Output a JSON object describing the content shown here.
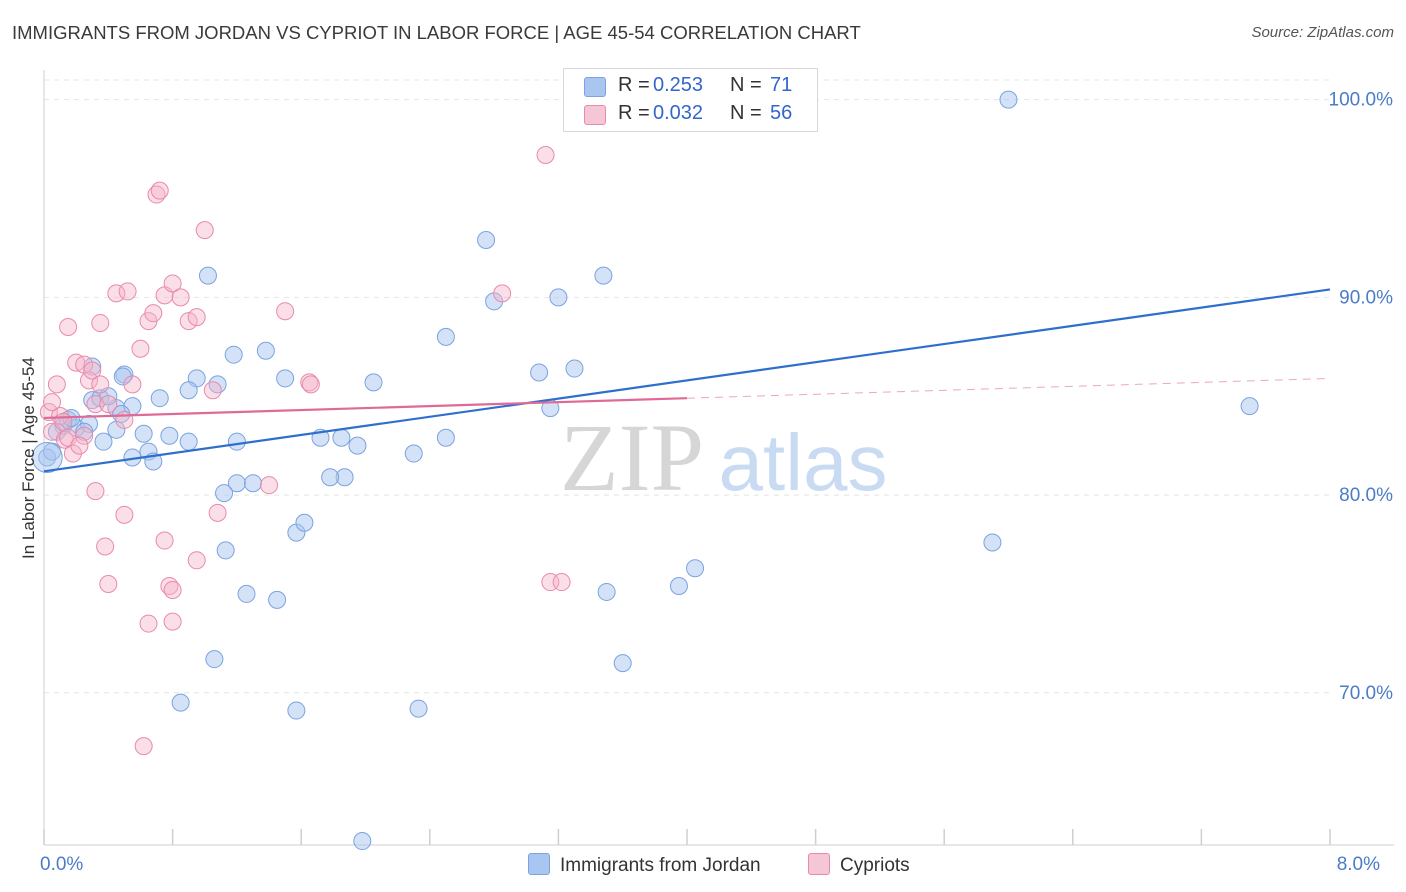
{
  "header": {
    "title": "IMMIGRANTS FROM JORDAN VS CYPRIOT IN LABOR FORCE | AGE 45-54 CORRELATION CHART",
    "source": "Source: ZipAtlas.com"
  },
  "watermark": {
    "zip": "ZIP",
    "atlas": "atlas"
  },
  "legend": {
    "series1": {
      "r_label": "R =",
      "r_value": "0.253",
      "n_label": "N =",
      "n_value": "71"
    },
    "series2": {
      "r_label": "R =",
      "r_value": "0.032",
      "n_label": "N =",
      "n_value": "56"
    }
  },
  "bottom_legend": {
    "series1": "Immigrants from Jordan",
    "series2": "Cypriots"
  },
  "colors": {
    "blue_fill": "#a9c6f0",
    "blue_stroke": "#7aa3e0",
    "blue_line": "#2f6fcc",
    "pink_fill": "#f5b3c8",
    "pink_stroke": "#e98aaa",
    "pink_line": "#e06a97",
    "axis_label": "#4a7cc7",
    "grid": "#e4e4e4"
  },
  "chart_data": {
    "type": "scatter",
    "title": "IMMIGRANTS FROM JORDAN VS CYPRIOT IN LABOR FORCE | AGE 45-54 CORRELATION CHART",
    "xlabel": "",
    "ylabel": "In Labor Force | Age 45-54",
    "xlim": [
      0,
      8
    ],
    "ylim": [
      62.3,
      101.5
    ],
    "x_tick_labels": [
      {
        "value": 0,
        "label": "0.0%"
      },
      {
        "value": 8,
        "label": "8.0%"
      }
    ],
    "y_tick_labels": [
      {
        "value": 100,
        "label": "100.0%"
      },
      {
        "value": 90,
        "label": "90.0%"
      },
      {
        "value": 80,
        "label": "80.0%"
      },
      {
        "value": 70,
        "label": "70.0%"
      }
    ],
    "series": [
      {
        "name": "Immigrants from Jordan",
        "color": "blue",
        "points": [
          [
            0.02,
            81.9
          ],
          [
            0.05,
            82.2
          ],
          [
            0.12,
            83.5
          ],
          [
            0.15,
            83.8
          ],
          [
            0.2,
            83.4
          ],
          [
            0.28,
            83.6
          ],
          [
            0.3,
            84.8
          ],
          [
            0.35,
            84.9
          ],
          [
            0.45,
            84.4
          ],
          [
            0.5,
            86.1
          ],
          [
            0.55,
            84.5
          ],
          [
            0.62,
            83.1
          ],
          [
            0.65,
            82.2
          ],
          [
            0.68,
            81.7
          ],
          [
            0.55,
            81.9
          ],
          [
            0.45,
            83.3
          ],
          [
            0.37,
            82.7
          ],
          [
            0.48,
            84.1
          ],
          [
            0.49,
            86.0
          ],
          [
            0.9,
            82.7
          ],
          [
            0.95,
            85.9
          ],
          [
            1.08,
            85.6
          ],
          [
            1.2,
            82.7
          ],
          [
            1.2,
            80.6
          ],
          [
            1.3,
            80.6
          ],
          [
            1.38,
            87.3
          ],
          [
            1.5,
            85.9
          ],
          [
            1.72,
            82.9
          ],
          [
            1.85,
            82.9
          ],
          [
            1.87,
            80.9
          ],
          [
            1.78,
            80.9
          ],
          [
            1.95,
            82.5
          ],
          [
            2.05,
            85.7
          ],
          [
            2.3,
            82.1
          ],
          [
            2.5,
            82.9
          ],
          [
            2.5,
            88.0
          ],
          [
            2.75,
            92.9
          ],
          [
            2.8,
            89.8
          ],
          [
            3.08,
            86.2
          ],
          [
            3.15,
            84.4
          ],
          [
            3.2,
            90.0
          ],
          [
            3.3,
            86.4
          ],
          [
            3.48,
            91.1
          ],
          [
            1.02,
            91.1
          ],
          [
            1.18,
            87.1
          ],
          [
            0.9,
            85.3
          ],
          [
            1.12,
            80.1
          ],
          [
            1.57,
            78.1
          ],
          [
            1.62,
            78.6
          ],
          [
            1.13,
            77.2
          ],
          [
            1.26,
            75.0
          ],
          [
            1.45,
            74.7
          ],
          [
            3.5,
            75.1
          ],
          [
            3.95,
            75.4
          ],
          [
            4.05,
            76.3
          ],
          [
            5.9,
            77.6
          ],
          [
            7.5,
            84.5
          ],
          [
            6.0,
            100.0
          ],
          [
            0.85,
            69.5
          ],
          [
            1.57,
            69.1
          ],
          [
            2.33,
            69.2
          ],
          [
            1.06,
            71.7
          ],
          [
            3.6,
            71.5
          ],
          [
            1.98,
            62.5
          ],
          [
            0.78,
            83.0
          ],
          [
            0.72,
            84.9
          ],
          [
            0.4,
            85.0
          ],
          [
            0.25,
            83.2
          ],
          [
            0.3,
            86.5
          ],
          [
            0.17,
            83.9
          ],
          [
            0.08,
            83.2
          ]
        ]
      },
      {
        "name": "Cypriots",
        "color": "pink",
        "points": [
          [
            0.03,
            84.2
          ],
          [
            0.05,
            83.2
          ],
          [
            0.1,
            84.0
          ],
          [
            0.12,
            83.7
          ],
          [
            0.13,
            82.8
          ],
          [
            0.15,
            82.9
          ],
          [
            0.18,
            82.1
          ],
          [
            0.2,
            86.7
          ],
          [
            0.25,
            86.6
          ],
          [
            0.28,
            85.8
          ],
          [
            0.3,
            86.3
          ],
          [
            0.32,
            84.6
          ],
          [
            0.35,
            85.6
          ],
          [
            0.4,
            84.6
          ],
          [
            0.45,
            90.2
          ],
          [
            0.5,
            83.8
          ],
          [
            0.55,
            85.6
          ],
          [
            0.6,
            87.4
          ],
          [
            0.65,
            88.8
          ],
          [
            0.68,
            89.2
          ],
          [
            0.7,
            95.2
          ],
          [
            0.72,
            95.4
          ],
          [
            0.75,
            90.1
          ],
          [
            0.8,
            90.7
          ],
          [
            0.85,
            90.0
          ],
          [
            0.9,
            88.8
          ],
          [
            0.95,
            89.0
          ],
          [
            1.0,
            93.4
          ],
          [
            1.05,
            85.3
          ],
          [
            1.08,
            79.1
          ],
          [
            1.4,
            80.5
          ],
          [
            1.5,
            89.3
          ],
          [
            1.65,
            85.7
          ],
          [
            1.66,
            85.6
          ],
          [
            2.85,
            90.2
          ],
          [
            3.12,
            97.2
          ],
          [
            3.15,
            75.6
          ],
          [
            3.22,
            75.6
          ],
          [
            0.32,
            80.2
          ],
          [
            0.35,
            88.7
          ],
          [
            0.38,
            77.4
          ],
          [
            0.4,
            75.5
          ],
          [
            0.5,
            79.0
          ],
          [
            0.75,
            77.7
          ],
          [
            0.78,
            75.4
          ],
          [
            0.8,
            75.2
          ],
          [
            0.65,
            73.5
          ],
          [
            0.8,
            73.6
          ],
          [
            0.95,
            76.7
          ],
          [
            0.62,
            67.3
          ],
          [
            0.05,
            84.7
          ],
          [
            0.15,
            88.5
          ],
          [
            0.08,
            85.6
          ],
          [
            0.25,
            83.0
          ],
          [
            0.22,
            82.5
          ],
          [
            0.52,
            90.3
          ]
        ]
      }
    ],
    "trendlines": [
      {
        "series": "Immigrants from Jordan",
        "x": [
          0,
          8
        ],
        "y": [
          81.2,
          90.4
        ],
        "style": "solid"
      },
      {
        "series": "Cypriots",
        "x": [
          0,
          4
        ],
        "y": [
          83.9,
          84.9
        ],
        "style": "solid"
      },
      {
        "series": "Cypriots",
        "x": [
          4,
          8
        ],
        "y": [
          84.9,
          85.9
        ],
        "style": "dashed"
      }
    ]
  }
}
